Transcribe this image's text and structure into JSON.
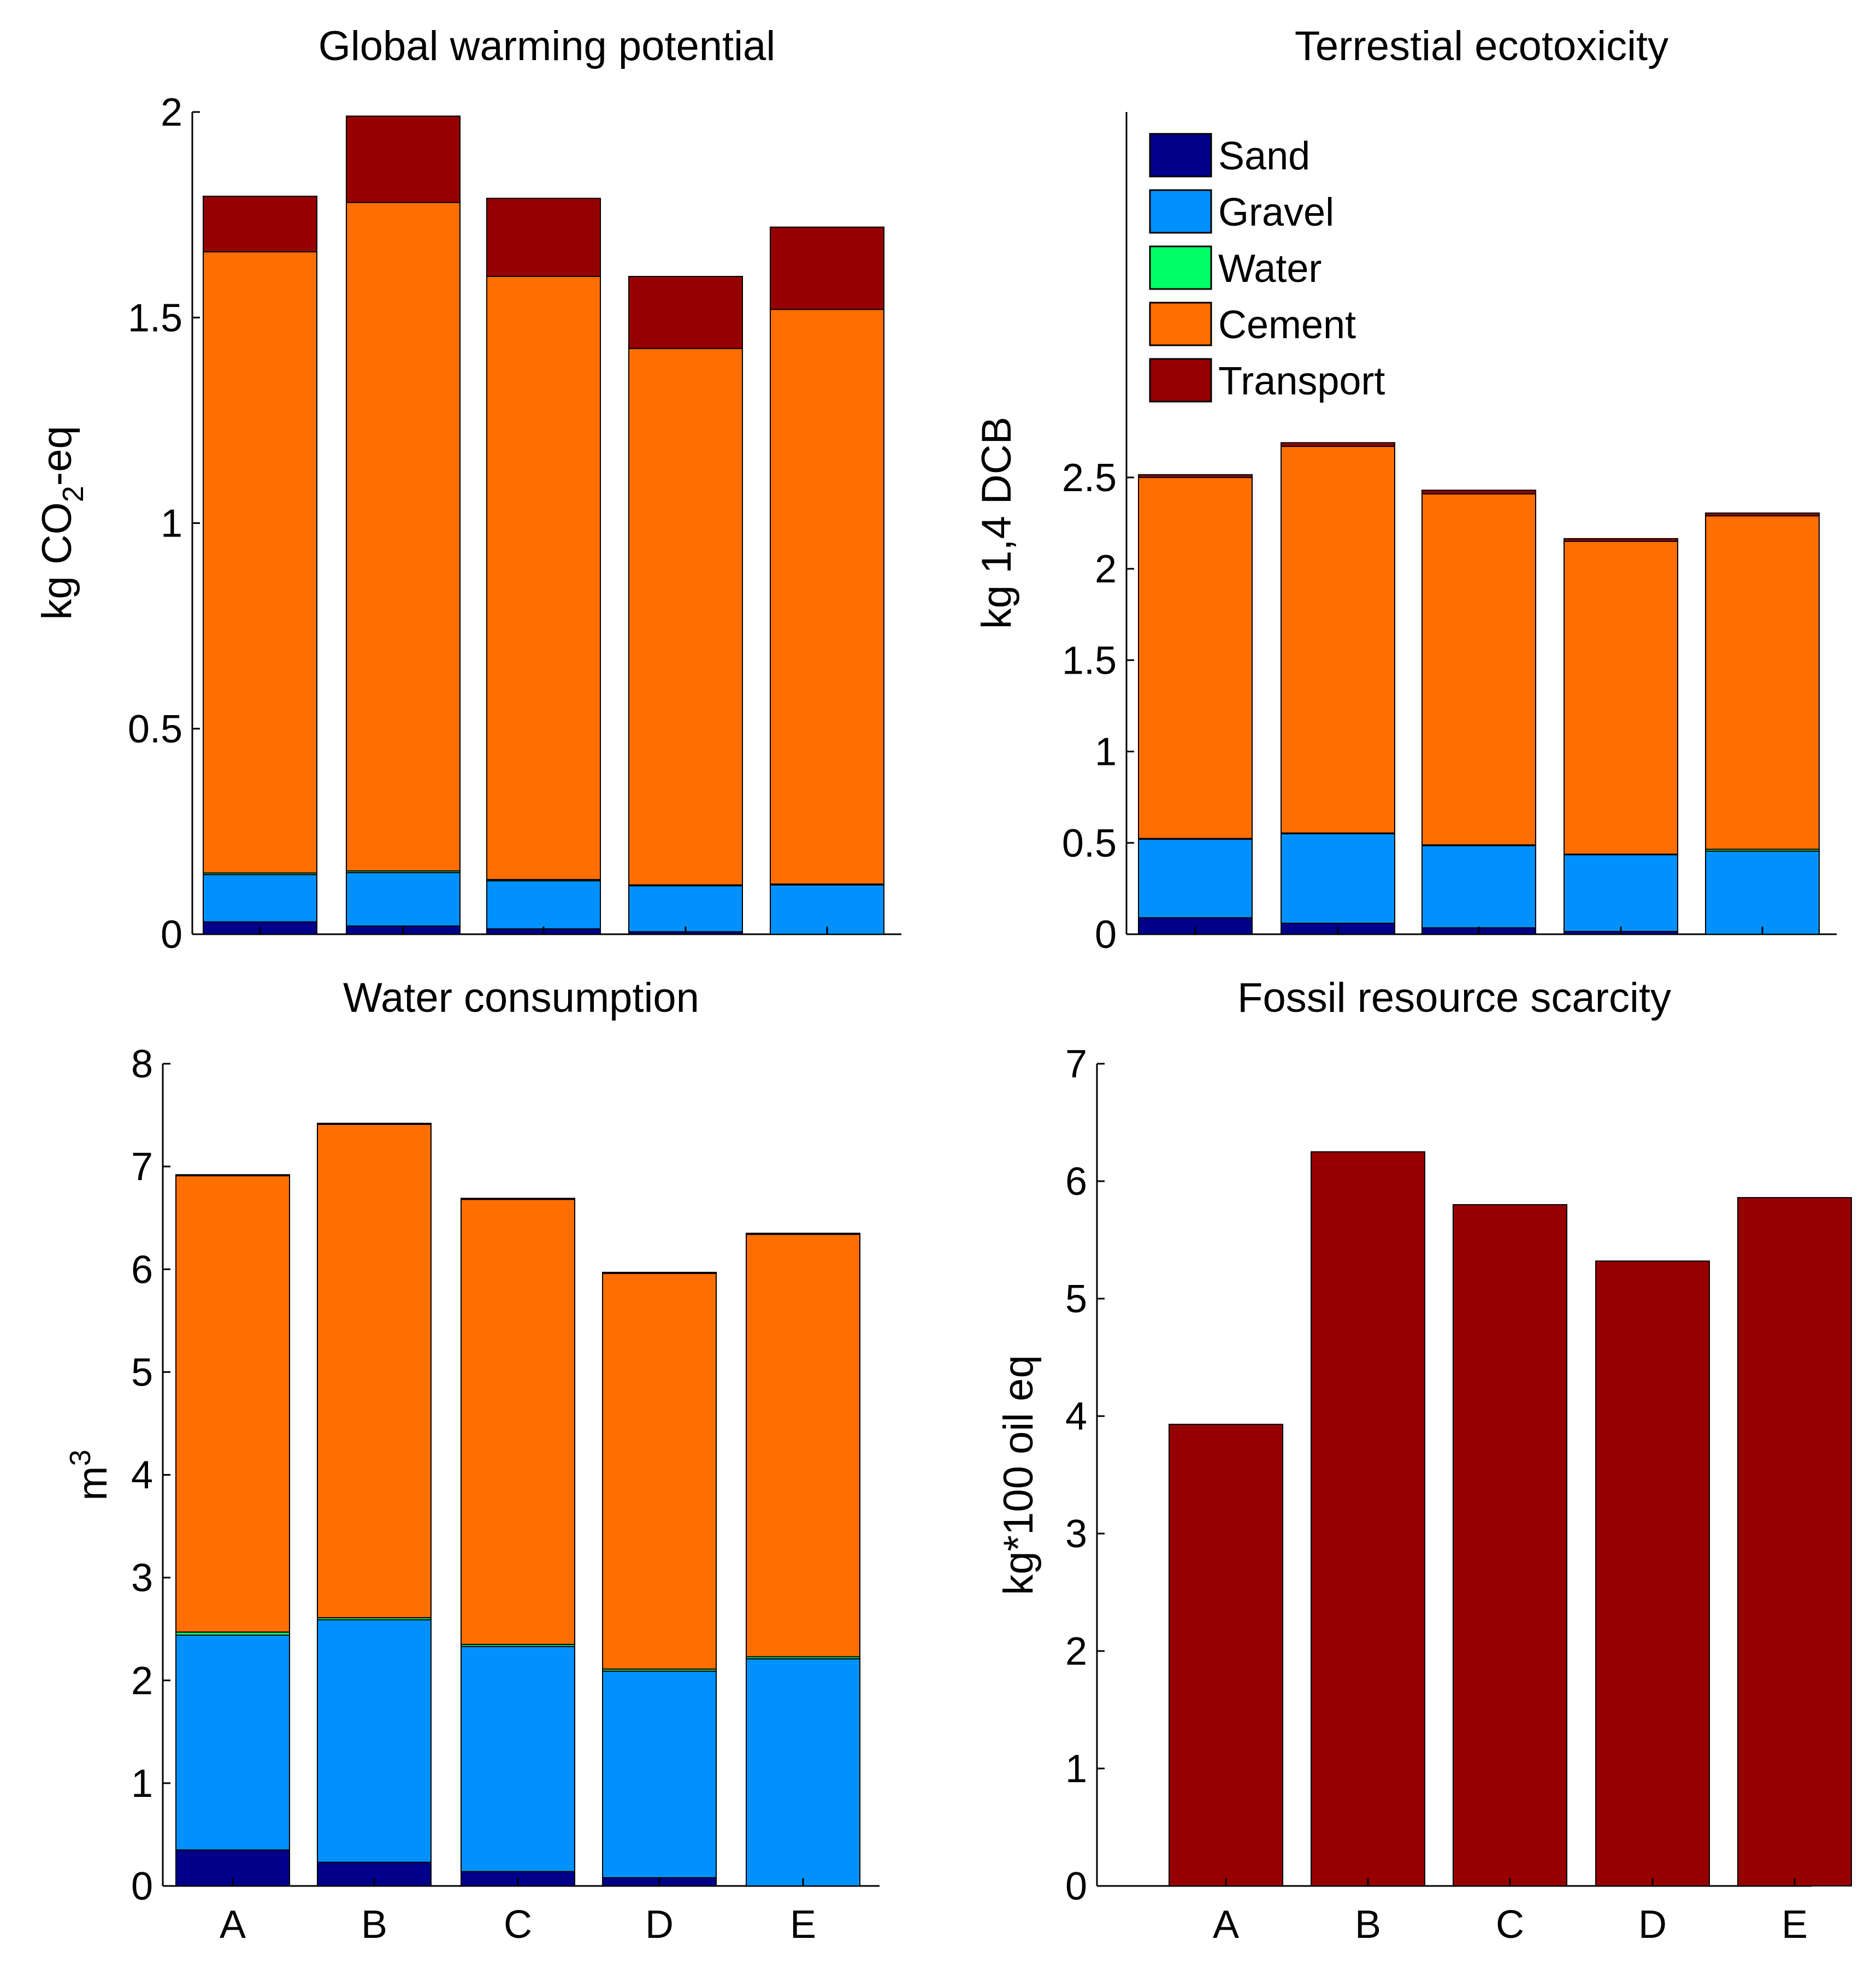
{
  "colors": {
    "Sand": "#00008b",
    "Gravel": "#0091ff",
    "Water": "#00ff66",
    "Cement": "#ff6e00",
    "Transport": "#960000"
  },
  "chart_data": [
    {
      "type": "bar",
      "stacked": true,
      "title": "Global warming potential",
      "ylabel": "kg CO2-eq",
      "ylabel_parts": [
        "kg CO",
        "2",
        "-eq"
      ],
      "ylim": [
        0,
        2
      ],
      "yticks": [
        0,
        0.5,
        1,
        1.5,
        2
      ],
      "ytick_labels": [
        "0",
        "0.5",
        "1",
        "1.5",
        "2"
      ],
      "categories": [
        "A",
        "B",
        "C",
        "D",
        "E"
      ],
      "show_xticklabels": false,
      "series": [
        {
          "name": "Sand",
          "values": [
            0.03,
            0.02,
            0.013,
            0.006,
            0.0
          ]
        },
        {
          "name": "Gravel",
          "values": [
            0.115,
            0.13,
            0.117,
            0.112,
            0.12
          ]
        },
        {
          "name": "Water",
          "values": [
            0.004,
            0.004,
            0.003,
            0.002,
            0.002
          ]
        },
        {
          "name": "Cement",
          "values": [
            1.511,
            1.626,
            1.467,
            1.305,
            1.398
          ]
        },
        {
          "name": "Transport",
          "values": [
            0.135,
            0.21,
            0.19,
            0.175,
            0.2
          ]
        }
      ]
    },
    {
      "type": "bar",
      "stacked": true,
      "title": "Terrestial ecotoxicity",
      "ylabel": "kg 1,4 DCB",
      "ylim": [
        0,
        4.5
      ],
      "yticks": [
        0,
        0.5,
        1,
        1.5,
        2,
        2.5
      ],
      "ytick_labels": [
        "0",
        "0.5",
        "1",
        "1.5",
        "2",
        "2.5"
      ],
      "categories": [
        "A",
        "B",
        "C",
        "D",
        "E"
      ],
      "show_xticklabels": false,
      "legend": {
        "location": "top-left",
        "entries": [
          "Sand",
          "Gravel",
          "Water",
          "Cement",
          "Transport"
        ]
      },
      "series": [
        {
          "name": "Sand",
          "values": [
            0.09,
            0.06,
            0.035,
            0.015,
            0.0
          ]
        },
        {
          "name": "Gravel",
          "values": [
            0.43,
            0.49,
            0.45,
            0.42,
            0.455
          ]
        },
        {
          "name": "Water",
          "values": [
            0.004,
            0.004,
            0.004,
            0.003,
            0.01
          ]
        },
        {
          "name": "Cement",
          "values": [
            1.976,
            2.116,
            1.921,
            1.712,
            1.825
          ]
        },
        {
          "name": "Transport",
          "values": [
            0.015,
            0.02,
            0.02,
            0.015,
            0.015
          ]
        }
      ]
    },
    {
      "type": "bar",
      "stacked": true,
      "title": "Water consumption",
      "ylabel": "m3",
      "ylabel_parts": [
        "m",
        "3"
      ],
      "ylim": [
        0,
        8
      ],
      "yticks": [
        0,
        1,
        2,
        3,
        4,
        5,
        6,
        7,
        8
      ],
      "ytick_labels": [
        "0",
        "1",
        "2",
        "3",
        "4",
        "5",
        "6",
        "7",
        "8"
      ],
      "categories": [
        "A",
        "B",
        "C",
        "D",
        "E"
      ],
      "show_xticklabels": true,
      "series": [
        {
          "name": "Sand",
          "values": [
            0.35,
            0.23,
            0.14,
            0.08,
            0.0
          ]
        },
        {
          "name": "Gravel",
          "values": [
            2.09,
            2.36,
            2.19,
            2.01,
            2.21
          ]
        },
        {
          "name": "Water",
          "values": [
            0.03,
            0.02,
            0.02,
            0.02,
            0.02
          ]
        },
        {
          "name": "Cement",
          "values": [
            4.44,
            4.8,
            4.33,
            3.85,
            4.11
          ]
        },
        {
          "name": "Transport",
          "values": [
            0.01,
            0.01,
            0.01,
            0.01,
            0.01
          ]
        }
      ]
    },
    {
      "type": "bar",
      "stacked": true,
      "title": "Fossil resource scarcity",
      "ylabel": "kg*100 oil eq",
      "ylim": [
        0,
        7
      ],
      "yticks": [
        0,
        1,
        2,
        3,
        4,
        5,
        6,
        7
      ],
      "ytick_labels": [
        "0",
        "1",
        "2",
        "3",
        "4",
        "5",
        "6",
        "7"
      ],
      "categories": [
        "A",
        "B",
        "C",
        "D",
        "E"
      ],
      "show_xticklabels": true,
      "series": [
        {
          "name": "Transport",
          "values": [
            3.93,
            6.25,
            5.8,
            5.32,
            5.86
          ]
        }
      ]
    }
  ]
}
